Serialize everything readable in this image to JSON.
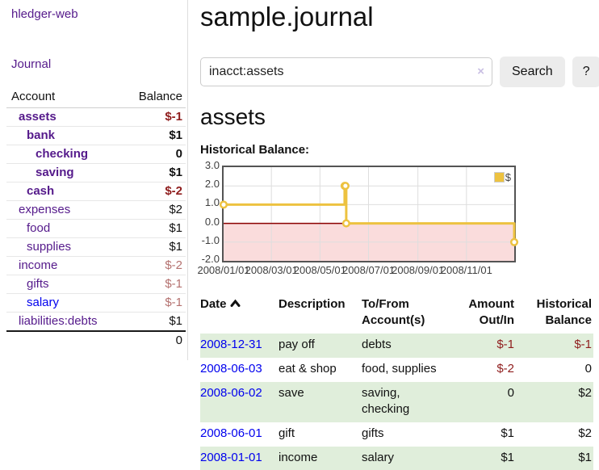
{
  "app": {
    "brand": "hledger-web"
  },
  "sidebar": {
    "nav": {
      "journal": "Journal"
    },
    "columns": {
      "account": "Account",
      "balance": "Balance"
    },
    "accounts": [
      {
        "name": "assets",
        "depth": 1,
        "balance": "$-1"
      },
      {
        "name": "bank",
        "depth": 2,
        "balance": "$1"
      },
      {
        "name": "checking",
        "depth": 3,
        "balance": "0"
      },
      {
        "name": "saving",
        "depth": 3,
        "balance": "$1"
      },
      {
        "name": "cash",
        "depth": 2,
        "balance": "$-2"
      },
      {
        "name": "expenses",
        "depth": 1,
        "balance": "$2"
      },
      {
        "name": "food",
        "depth": 2,
        "balance": "$1"
      },
      {
        "name": "supplies",
        "depth": 2,
        "balance": "$1"
      },
      {
        "name": "income",
        "depth": 1,
        "balance": "$-2"
      },
      {
        "name": "gifts",
        "depth": 2,
        "balance": "$-1"
      },
      {
        "name": "salary",
        "depth": 2,
        "balance": "$-1"
      },
      {
        "name": "liabilities:debts",
        "depth": 1,
        "balance": "$1"
      }
    ],
    "total": "0"
  },
  "header": {
    "title": "sample.journal"
  },
  "search": {
    "value": "inacct:assets",
    "clear_icon": "×",
    "button_label": "Search",
    "help_label": "?"
  },
  "account_page": {
    "title": "assets",
    "chart_label": "Historical Balance:"
  },
  "chart_data": {
    "type": "line",
    "style": "step",
    "series": [
      {
        "name": "$",
        "color": "#edc240",
        "points": [
          [
            "2008-01-01",
            1
          ],
          [
            "2008-06-01",
            2
          ],
          [
            "2008-06-02",
            2
          ],
          [
            "2008-06-03",
            0
          ],
          [
            "2008-12-31",
            -1
          ]
        ]
      }
    ],
    "x_range": [
      "2008-01-01",
      "2008-12-31"
    ],
    "ylim": [
      -2,
      3
    ],
    "yticks": [
      "3.0",
      "2.0",
      "1.0",
      "0.0",
      "-1.0",
      "-2.0"
    ],
    "xticks": [
      "2008/01/01",
      "2008/03/01",
      "2008/05/01",
      "2008/07/01",
      "2008/09/01",
      "2008/11/01"
    ],
    "legend": {
      "position": "top-right",
      "label": "$"
    },
    "grid": true,
    "negative_region_color": "#fadcdc",
    "zero_line_color": "#8b0000",
    "grid_color": "#dedede"
  },
  "register": {
    "headers": {
      "date": "Date",
      "description": "Description",
      "accounts": "To/From Account(s)",
      "amount": "Amount Out/In",
      "balance": "Historical Balance"
    },
    "rows": [
      {
        "date": "2008-12-31",
        "description": "pay off",
        "accounts": "debts",
        "amount": "$-1",
        "balance": "$-1"
      },
      {
        "date": "2008-06-03",
        "description": "eat & shop",
        "accounts": "food, supplies",
        "amount": "$-2",
        "balance": "0"
      },
      {
        "date": "2008-06-02",
        "description": "save",
        "accounts": "saving, checking",
        "amount": "0",
        "balance": "$2"
      },
      {
        "date": "2008-06-01",
        "description": "gift",
        "accounts": "gifts",
        "amount": "$1",
        "balance": "$2"
      },
      {
        "date": "2008-01-01",
        "description": "income",
        "accounts": "salary",
        "amount": "$1",
        "balance": "$1"
      }
    ]
  },
  "colors": {
    "link_purple": "#551a8b",
    "link_blue": "#0000ee",
    "negative": "#8f1d1d",
    "negative_muted": "#b4716f",
    "row_stripe_green": "#e0eedb",
    "series_gold": "#edc240"
  }
}
